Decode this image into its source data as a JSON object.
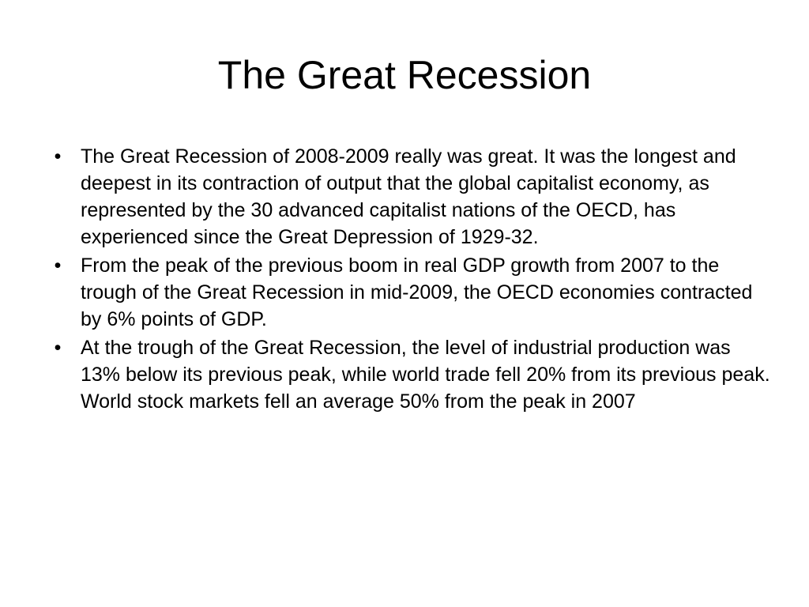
{
  "slide": {
    "title": "The Great Recession",
    "bullets": [
      {
        "symbol": "•",
        "text": "The Great Recession of 2008-2009 really was great. It was the longest and deepest in its contraction of output that the global capitalist economy, as represented by the 30 advanced capitalist nations of the OECD, has experienced since the Great Depression of 1929-32."
      },
      {
        "symbol": "•",
        "text": "From the peak of the previous boom in real GDP growth from 2007 to the trough of the Great Recession in mid-2009, the OECD economies contracted by 6% points of GDP."
      },
      {
        "symbol": "•",
        "text": "At the trough of the Great Recession, the level of industrial production was 13% below its previous peak, while world trade fell 20% from its previous peak. World stock markets fell an average 50% from the peak in 2007"
      }
    ]
  }
}
